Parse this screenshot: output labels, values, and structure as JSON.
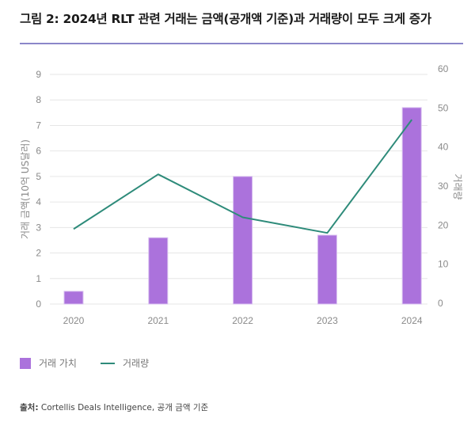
{
  "title": "그림 2: 2024년 RLT 관련 거래는 금액(공개액 기준)과 거래량이 모두 크게 증가",
  "chart_data": {
    "type": "bar+line",
    "categories": [
      "2020",
      "2021",
      "2022",
      "2023",
      "2024"
    ],
    "series": [
      {
        "name": "거래 가치",
        "type": "bar",
        "axis": "left",
        "color": "#ab72dc",
        "values": [
          0.5,
          2.6,
          5.0,
          2.7,
          7.7
        ]
      },
      {
        "name": "거래량",
        "type": "line",
        "axis": "right",
        "color": "#2e8b7a",
        "values": [
          19,
          33,
          22,
          18,
          47
        ]
      }
    ],
    "ylabel_left": "거래 금액(10억 US달러)",
    "ylabel_right": "거래량",
    "ylim_left": [
      0,
      9
    ],
    "ylim_right": [
      0,
      60
    ],
    "yticks_left": [
      "0",
      "1",
      "2",
      "3",
      "4",
      "5",
      "6",
      "7",
      "8",
      "9"
    ],
    "yticks_right": [
      "0",
      "10",
      "20",
      "30",
      "40",
      "50",
      "60"
    ],
    "grid": true,
    "legend_position": "bottom-left"
  },
  "legend": {
    "bar_label": "거래 가치",
    "line_label": "거래량"
  },
  "source": {
    "prefix": "출처:",
    "text": " Cortellis Deals Intelligence, 공개 금액 기준"
  }
}
